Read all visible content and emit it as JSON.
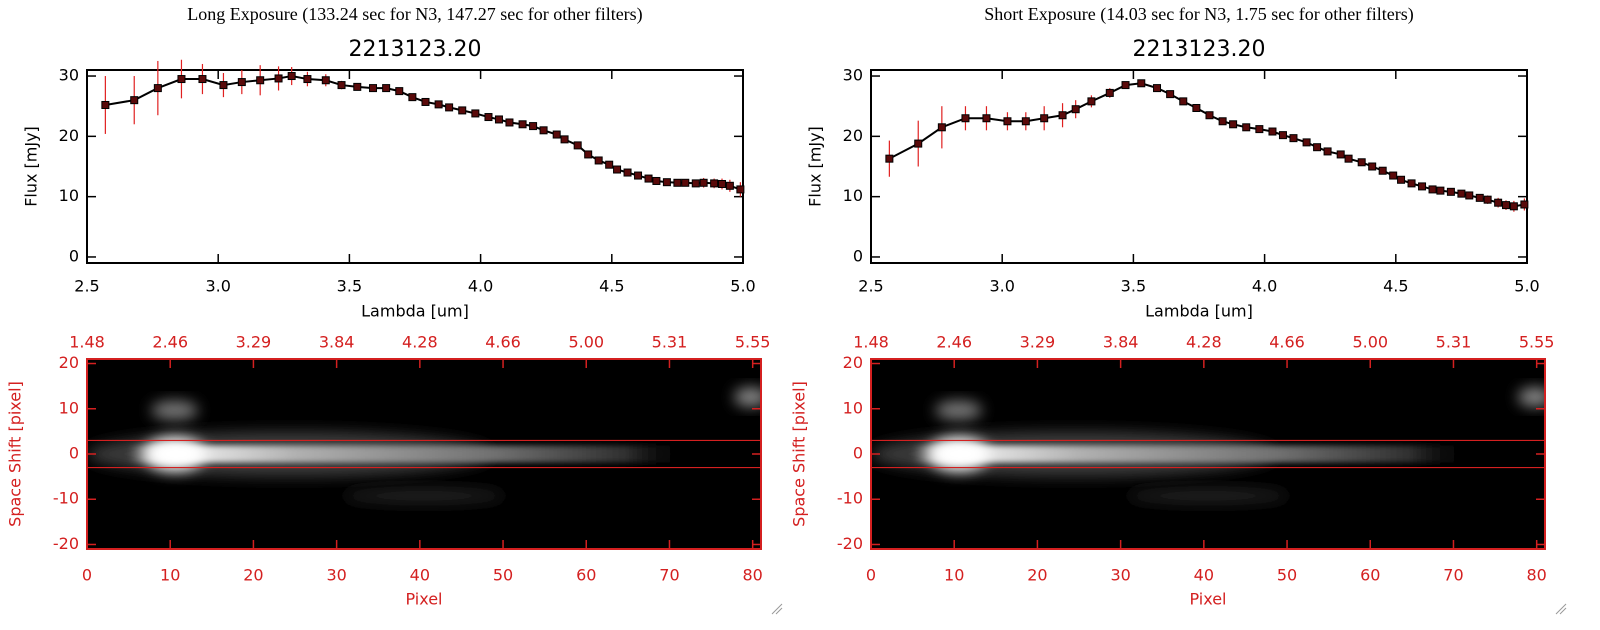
{
  "chart_data": [
    {
      "type": "line",
      "caption": "Long Exposure (133.24 sec for N3, 147.27 sec for other filters)",
      "title": "2213123.20",
      "xlabel": "Lambda [um]",
      "ylabel": "Flux [mJy]",
      "xlim": [
        2.5,
        5.0
      ],
      "xticks": [
        2.5,
        {
          "value": 3,
          "label": "3.0"
        },
        3.5,
        {
          "value": 4,
          "label": "4.0"
        },
        4.5,
        {
          "value": 5,
          "label": "5.0"
        }
      ],
      "ylim": [
        -1,
        31
      ],
      "yticks": [
        0,
        10,
        20,
        30
      ],
      "x": [
        2.57,
        2.68,
        2.77,
        2.86,
        2.94,
        3.02,
        3.09,
        3.16,
        3.23,
        3.28,
        3.34,
        3.41,
        3.47,
        3.53,
        3.59,
        3.64,
        3.69,
        3.74,
        3.79,
        3.84,
        3.88,
        3.93,
        3.98,
        4.03,
        4.07,
        4.11,
        4.16,
        4.2,
        4.24,
        4.29,
        4.32,
        4.37,
        4.41,
        4.45,
        4.49,
        4.52,
        4.56,
        4.6,
        4.64,
        4.67,
        4.71,
        4.75,
        4.78,
        4.82,
        4.85,
        4.89,
        4.92,
        4.95,
        4.99
      ],
      "series": [
        {
          "color": "#000000",
          "error_color": "#e02020",
          "values": [
            25.2,
            26,
            28,
            29.5,
            29.5,
            28.5,
            29,
            29.3,
            29.6,
            30,
            29.5,
            29.3,
            28.5,
            28.2,
            28,
            28,
            27.5,
            26.5,
            25.7,
            25.3,
            24.8,
            24.3,
            23.8,
            23.2,
            22.8,
            22.3,
            22,
            21.7,
            21,
            20.3,
            19.5,
            18.5,
            17,
            16,
            15.3,
            14.5,
            14,
            13.5,
            13,
            12.6,
            12.4,
            12.3,
            12.3,
            12.2,
            12.3,
            12.2,
            12.1,
            11.8,
            11.2
          ],
          "errors": [
            4.8,
            4.0,
            4.5,
            3.2,
            2.5,
            2.0,
            2.0,
            2.5,
            2.0,
            1.5,
            1.2,
            1.0,
            0.7,
            0.6,
            0.5,
            0.5,
            0.5,
            0.5,
            0.5,
            0.5,
            0.5,
            0.5,
            0.5,
            0.5,
            0.5,
            0.5,
            0.5,
            0.5,
            0.5,
            0.5,
            0.5,
            0.5,
            0.5,
            0.5,
            0.5,
            0.5,
            0.5,
            0.5,
            0.5,
            0.5,
            0.5,
            0.5,
            0.5,
            0.5,
            0.8,
            0.8,
            0.9,
            1.0,
            1.2
          ]
        }
      ]
    },
    {
      "type": "image",
      "xlabel": "Pixel",
      "ylabel": "Space Shift [pixel]",
      "axis_color": "#d42020",
      "xlim": [
        0,
        81
      ],
      "xticks": [
        0,
        10,
        20,
        30,
        40,
        50,
        60,
        70,
        80
      ],
      "ylim": [
        -21,
        21
      ],
      "yticks": [
        -20,
        -10,
        0,
        10,
        20
      ],
      "x2ticks": [
        1.48,
        2.46,
        3.29,
        3.84,
        4.28,
        4.66,
        {
          "value": 5,
          "label": "5.00"
        },
        5.31,
        5.55
      ],
      "aperture": [
        -3,
        3
      ]
    },
    {
      "type": "line",
      "caption": "Short Exposure (14.03 sec for N3, 1.75 sec for other filters)",
      "title": "2213123.20",
      "xlabel": "Lambda [um]",
      "ylabel": "Flux [mJy]",
      "xlim": [
        2.5,
        5.0
      ],
      "xticks": [
        2.5,
        {
          "value": 3,
          "label": "3.0"
        },
        3.5,
        {
          "value": 4,
          "label": "4.0"
        },
        4.5,
        {
          "value": 5,
          "label": "5.0"
        }
      ],
      "ylim": [
        -1,
        31
      ],
      "yticks": [
        0,
        10,
        20,
        30
      ],
      "x": [
        2.57,
        2.68,
        2.77,
        2.86,
        2.94,
        3.02,
        3.09,
        3.16,
        3.23,
        3.28,
        3.34,
        3.41,
        3.47,
        3.53,
        3.59,
        3.64,
        3.69,
        3.74,
        3.79,
        3.84,
        3.88,
        3.93,
        3.98,
        4.03,
        4.07,
        4.11,
        4.16,
        4.2,
        4.24,
        4.29,
        4.32,
        4.37,
        4.41,
        4.45,
        4.49,
        4.52,
        4.56,
        4.6,
        4.64,
        4.67,
        4.71,
        4.75,
        4.78,
        4.82,
        4.85,
        4.89,
        4.92,
        4.95,
        4.99
      ],
      "series": [
        {
          "color": "#000000",
          "error_color": "#e02020",
          "values": [
            16.3,
            18.8,
            21.5,
            23,
            23,
            22.5,
            22.5,
            23,
            23.5,
            24.5,
            25.8,
            27.2,
            28.5,
            28.8,
            28,
            27,
            25.8,
            24.7,
            23.5,
            22.5,
            22,
            21.5,
            21.2,
            20.8,
            20.2,
            19.7,
            19,
            18.2,
            17.5,
            17,
            16.3,
            15.7,
            15,
            14.3,
            13.5,
            12.8,
            12.2,
            11.7,
            11.2,
            11,
            10.8,
            10.5,
            10.2,
            9.8,
            9.5,
            9,
            8.6,
            8.4,
            8.7
          ],
          "errors": [
            3.0,
            3.8,
            3.5,
            2.0,
            2.0,
            1.5,
            1.5,
            2.0,
            2.0,
            1.5,
            1.0,
            0.8,
            0.5,
            0.5,
            0.5,
            0.5,
            0.5,
            0.5,
            0.5,
            0.5,
            0.5,
            0.5,
            0.5,
            0.5,
            0.5,
            0.5,
            0.5,
            0.5,
            0.5,
            0.5,
            0.5,
            0.5,
            0.5,
            0.5,
            0.5,
            0.5,
            0.5,
            0.5,
            0.5,
            0.5,
            0.5,
            0.5,
            0.5,
            0.5,
            0.7,
            0.8,
            0.8,
            0.9,
            1.0
          ]
        }
      ]
    },
    {
      "type": "image",
      "xlabel": "Pixel",
      "ylabel": "Space Shift [pixel]",
      "axis_color": "#d42020",
      "xlim": [
        0,
        81
      ],
      "xticks": [
        0,
        10,
        20,
        30,
        40,
        50,
        60,
        70,
        80
      ],
      "ylim": [
        -21,
        21
      ],
      "yticks": [
        -20,
        -10,
        0,
        10,
        20
      ],
      "x2ticks": [
        1.48,
        2.46,
        3.29,
        3.84,
        4.28,
        4.66,
        {
          "value": 5,
          "label": "5.00"
        },
        5.31,
        5.55
      ],
      "aperture": [
        -3,
        3
      ]
    }
  ]
}
